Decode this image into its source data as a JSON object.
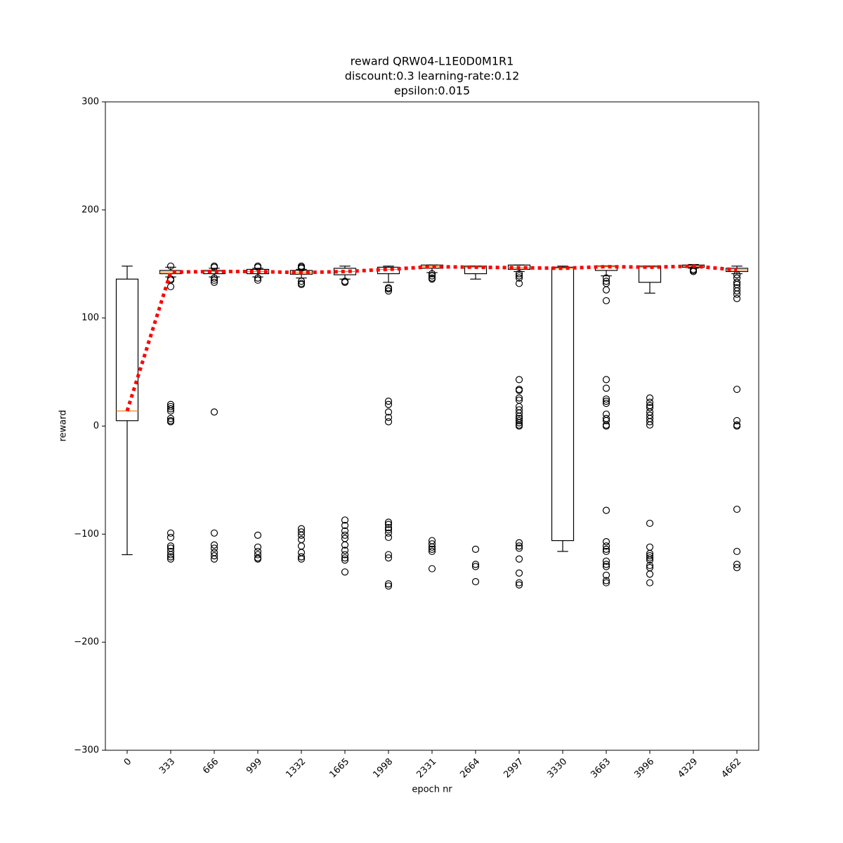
{
  "chart_data": {
    "type": "box",
    "title": [
      "reward QRW04-L1E0D0M1R1",
      "discount:0.3 learning-rate:0.12",
      "epsilon:0.015"
    ],
    "x_label": "epoch nr",
    "y_label": "reward",
    "categories": [
      "0",
      "333",
      "666",
      "999",
      "1332",
      "1665",
      "1998",
      "2331",
      "2664",
      "2997",
      "3330",
      "3663",
      "3996",
      "4329",
      "4662"
    ],
    "boxes": [
      {
        "whislo": -119,
        "q1": 5,
        "med": 14,
        "q3": 136,
        "whishi": 148,
        "fliers": []
      },
      {
        "whislo": 138,
        "q1": 141,
        "med": 142.5,
        "q3": 144,
        "whishi": 147,
        "fliers": [
          148,
          136,
          135,
          129,
          20,
          18,
          16,
          14,
          7,
          5,
          4,
          -99,
          -103,
          -111,
          -113,
          -116,
          -119,
          -121,
          -123
        ]
      },
      {
        "whislo": 138,
        "q1": 141,
        "med": 143,
        "q3": 144,
        "whishi": 146,
        "fliers": [
          148,
          147,
          137,
          135,
          133,
          13,
          -99,
          -110,
          -113,
          -117,
          -120,
          -123
        ]
      },
      {
        "whislo": 138,
        "q1": 141,
        "med": 143,
        "q3": 145,
        "whishi": 146,
        "fliers": [
          148,
          147,
          137,
          135,
          -101,
          -112,
          -116,
          -119,
          -122,
          -123
        ]
      },
      {
        "whislo": 137,
        "q1": 140.5,
        "med": 142,
        "q3": 144,
        "whishi": 145,
        "fliers": [
          148,
          147,
          146,
          134,
          132,
          131,
          -95,
          -98,
          -101,
          -105,
          -111,
          -117,
          -121,
          -123
        ]
      },
      {
        "whislo": 136,
        "q1": 140,
        "med": 143,
        "q3": 146,
        "whishi": 148,
        "fliers": [
          134,
          133,
          -87,
          -92,
          -97,
          -101,
          -104,
          -110,
          -115,
          -119,
          -122,
          -124,
          -135
        ]
      },
      {
        "whislo": 133,
        "q1": 141,
        "med": 145,
        "q3": 147,
        "whishi": 148,
        "fliers": [
          128,
          127,
          125,
          23,
          20,
          13,
          8,
          4,
          -89,
          -91,
          -94,
          -96,
          -99,
          -103,
          -119,
          -122,
          -146,
          -148
        ]
      },
      {
        "whislo": 142,
        "q1": 146,
        "med": 147.5,
        "q3": 149,
        "whishi": 149,
        "fliers": [
          141,
          139,
          137,
          136,
          -106,
          -109,
          -112,
          -114,
          -116,
          -132
        ]
      },
      {
        "whislo": 136,
        "q1": 141,
        "med": 147,
        "q3": 148,
        "whishi": 148,
        "fliers": [
          -114,
          -128,
          -130,
          -144
        ]
      },
      {
        "whislo": 143,
        "q1": 145,
        "med": 146.5,
        "q3": 149,
        "whishi": 149,
        "fliers": [
          141,
          139,
          137,
          132,
          43,
          34,
          33,
          26,
          24,
          18,
          15,
          12,
          9,
          7,
          5,
          3,
          1,
          0,
          -108,
          -111,
          -113,
          -123,
          -136,
          -145,
          -147
        ]
      },
      {
        "whislo": -116,
        "q1": -106,
        "med": 146,
        "q3": 147,
        "whishi": 148,
        "fliers": []
      },
      {
        "whislo": 139,
        "q1": 144,
        "med": 147.5,
        "q3": 148,
        "whishi": 148,
        "fliers": [
          137,
          134,
          132,
          126,
          116,
          43,
          35,
          25,
          23,
          21,
          11,
          7,
          5,
          1,
          0,
          -78,
          -107,
          -111,
          -114,
          -116,
          -125,
          -128,
          -130,
          -138,
          -143,
          -145
        ]
      },
      {
        "whislo": 123,
        "q1": 133,
        "med": 147,
        "q3": 148,
        "whishi": 148,
        "fliers": [
          26,
          22,
          19,
          17,
          13,
          10,
          7,
          4,
          1,
          -90,
          -112,
          -118,
          -120,
          -122,
          -124,
          -129,
          -131,
          -137,
          -145
        ]
      },
      {
        "whislo": 146,
        "q1": 147,
        "med": 148,
        "q3": 149,
        "whishi": 149.5,
        "fliers": [
          145,
          144,
          143
        ]
      },
      {
        "whislo": 141,
        "q1": 143,
        "med": 144.5,
        "q3": 146,
        "whishi": 148,
        "fliers": [
          140,
          137,
          133,
          131,
          128,
          125,
          122,
          118,
          34,
          5,
          1,
          0,
          -77,
          -116,
          -128,
          -131
        ]
      }
    ],
    "box_color": "#000000",
    "median_color": "#ff7f0e",
    "median_line_color": "#ff0000",
    "ylim": [
      -300,
      300
    ],
    "yticks": [
      {
        "value": -300,
        "label": "−300"
      },
      {
        "value": -200,
        "label": "−200"
      },
      {
        "value": -100,
        "label": "−100"
      },
      0,
      100,
      200,
      300
    ]
  }
}
